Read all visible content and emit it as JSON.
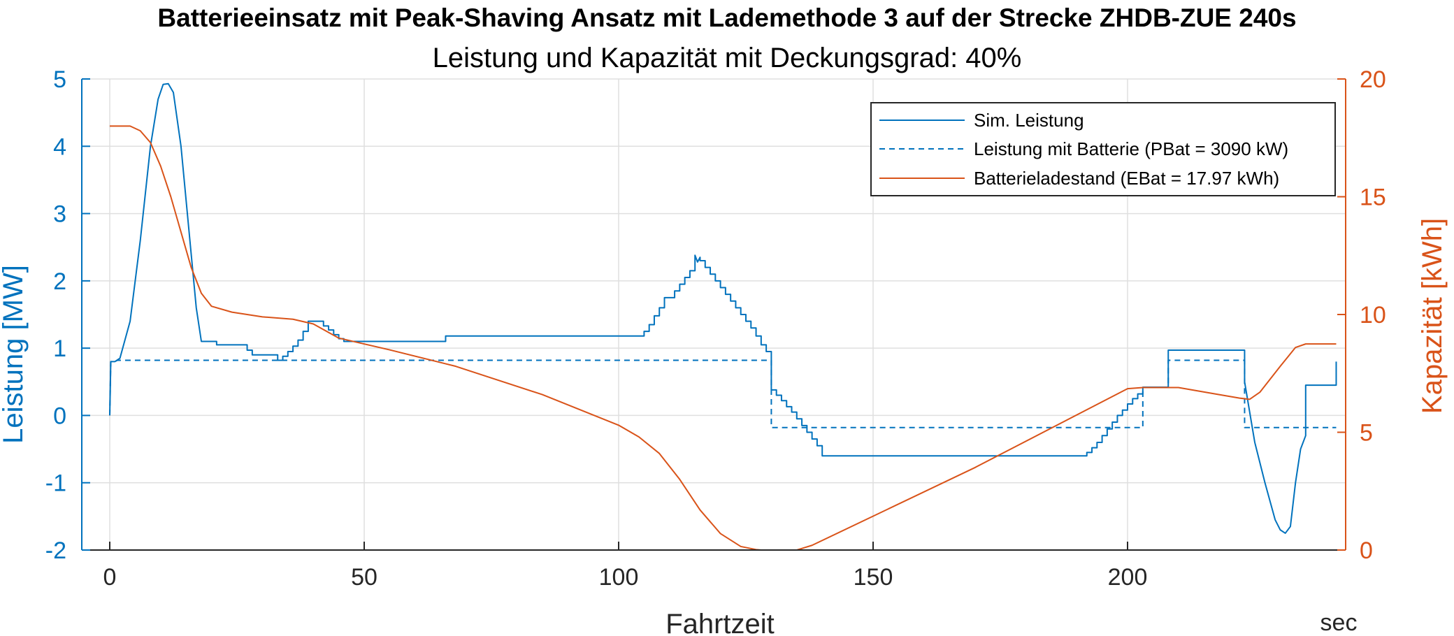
{
  "chart_data": {
    "type": "line",
    "title": "Batterieeinsatz mit Peak-Shaving Ansatz mit Lademethode 3 auf der Strecke ZHDB-ZUE 240s",
    "subtitle": "Leistung und Kapazität mit Deckungsgrad: 40%",
    "xlabel": "Fahrtzeit",
    "xunit": "sec",
    "ylabel_left": "Leistung [MW]",
    "ylabel_right": "Kapazität [kWh]",
    "xlim": [
      -3,
      243
    ],
    "ylim_left": [
      -2,
      5
    ],
    "ylim_right": [
      0,
      20
    ],
    "xticks": [
      0,
      50,
      100,
      150,
      200
    ],
    "yticks_left": [
      -2,
      -1,
      0,
      1,
      2,
      3,
      4,
      5
    ],
    "yticks_right": [
      0,
      5,
      10,
      15,
      20
    ],
    "grid": true,
    "legend_position": "top-right",
    "colors": {
      "blue": "#0072BD",
      "orange": "#D95319"
    },
    "series": [
      {
        "name": "Sim. Leistung",
        "axis": "left",
        "style": "solid",
        "color": "#0072BD",
        "points": [
          [
            0,
            0
          ],
          [
            0.2,
            0.8
          ],
          [
            1,
            0.8
          ],
          [
            2,
            0.85
          ],
          [
            4,
            1.4
          ],
          [
            6,
            2.6
          ],
          [
            8,
            4.0
          ],
          [
            9.5,
            4.7
          ],
          [
            10.5,
            4.92
          ],
          [
            11.5,
            4.93
          ],
          [
            12.5,
            4.8
          ],
          [
            14,
            4.0
          ],
          [
            15.5,
            2.8
          ],
          [
            17,
            1.6
          ],
          [
            18,
            1.1
          ],
          [
            21,
            1.1
          ],
          [
            21,
            1.05
          ],
          [
            27,
            1.05
          ],
          [
            27,
            0.97
          ],
          [
            28,
            0.97
          ],
          [
            28,
            0.9
          ],
          [
            33,
            0.9
          ],
          [
            33,
            0.82
          ],
          [
            34,
            0.82
          ],
          [
            34,
            0.88
          ],
          [
            35,
            0.88
          ],
          [
            35,
            0.95
          ],
          [
            36,
            0.95
          ],
          [
            36,
            1.03
          ],
          [
            37,
            1.03
          ],
          [
            37,
            1.12
          ],
          [
            38,
            1.12
          ],
          [
            38,
            1.25
          ],
          [
            39,
            1.25
          ],
          [
            39,
            1.4
          ],
          [
            42,
            1.4
          ],
          [
            42,
            1.33
          ],
          [
            43,
            1.33
          ],
          [
            43,
            1.27
          ],
          [
            44,
            1.27
          ],
          [
            44,
            1.2
          ],
          [
            45,
            1.2
          ],
          [
            45,
            1.14
          ],
          [
            46,
            1.14
          ],
          [
            46,
            1.1
          ],
          [
            66,
            1.1
          ],
          [
            66,
            1.18
          ],
          [
            105,
            1.18
          ],
          [
            105,
            1.25
          ],
          [
            106,
            1.25
          ],
          [
            106,
            1.35
          ],
          [
            107,
            1.35
          ],
          [
            107,
            1.48
          ],
          [
            108,
            1.48
          ],
          [
            108,
            1.6
          ],
          [
            109,
            1.6
          ],
          [
            109,
            1.75
          ],
          [
            111,
            1.75
          ],
          [
            111,
            1.85
          ],
          [
            112,
            1.85
          ],
          [
            112,
            1.95
          ],
          [
            113,
            1.95
          ],
          [
            113,
            2.05
          ],
          [
            114,
            2.05
          ],
          [
            114,
            2.15
          ],
          [
            115,
            2.15
          ],
          [
            115,
            2.38
          ],
          [
            115.5,
            2.28
          ],
          [
            116,
            2.35
          ],
          [
            116,
            2.3
          ],
          [
            117,
            2.3
          ],
          [
            117,
            2.2
          ],
          [
            118,
            2.2
          ],
          [
            118,
            2.1
          ],
          [
            119,
            2.1
          ],
          [
            119,
            2.0
          ],
          [
            120,
            2.0
          ],
          [
            120,
            1.9
          ],
          [
            121,
            1.9
          ],
          [
            121,
            1.8
          ],
          [
            122,
            1.8
          ],
          [
            122,
            1.7
          ],
          [
            123,
            1.7
          ],
          [
            123,
            1.6
          ],
          [
            124,
            1.6
          ],
          [
            124,
            1.5
          ],
          [
            125,
            1.5
          ],
          [
            125,
            1.4
          ],
          [
            126,
            1.4
          ],
          [
            126,
            1.3
          ],
          [
            127,
            1.3
          ],
          [
            127,
            1.18
          ],
          [
            128,
            1.18
          ],
          [
            128,
            1.05
          ],
          [
            129,
            1.05
          ],
          [
            129,
            0.95
          ],
          [
            130,
            0.95
          ],
          [
            130,
            0.38
          ],
          [
            131,
            0.38
          ],
          [
            131,
            0.3
          ],
          [
            132,
            0.3
          ],
          [
            132,
            0.22
          ],
          [
            133,
            0.22
          ],
          [
            133,
            0.13
          ],
          [
            134,
            0.13
          ],
          [
            134,
            0.05
          ],
          [
            135,
            0.05
          ],
          [
            135,
            -0.05
          ],
          [
            136,
            -0.05
          ],
          [
            136,
            -0.15
          ],
          [
            137,
            -0.15
          ],
          [
            137,
            -0.25
          ],
          [
            138,
            -0.25
          ],
          [
            138,
            -0.35
          ],
          [
            139,
            -0.35
          ],
          [
            139,
            -0.45
          ],
          [
            140,
            -0.45
          ],
          [
            140,
            -0.6
          ],
          [
            192,
            -0.6
          ],
          [
            192,
            -0.55
          ],
          [
            193,
            -0.55
          ],
          [
            193,
            -0.48
          ],
          [
            194,
            -0.48
          ],
          [
            194,
            -0.4
          ],
          [
            195,
            -0.4
          ],
          [
            195,
            -0.3
          ],
          [
            196,
            -0.3
          ],
          [
            196,
            -0.2
          ],
          [
            197,
            -0.2
          ],
          [
            197,
            -0.1
          ],
          [
            198,
            -0.1
          ],
          [
            198,
            0.0
          ],
          [
            199,
            0.0
          ],
          [
            199,
            0.08
          ],
          [
            200,
            0.08
          ],
          [
            200,
            0.17
          ],
          [
            201,
            0.17
          ],
          [
            201,
            0.25
          ],
          [
            202,
            0.25
          ],
          [
            202,
            0.32
          ],
          [
            203,
            0.32
          ],
          [
            203,
            0.42
          ],
          [
            208,
            0.42
          ],
          [
            208,
            0.97
          ],
          [
            223,
            0.97
          ],
          [
            223,
            0.5
          ],
          [
            225,
            -0.4
          ],
          [
            227,
            -1.0
          ],
          [
            229,
            -1.55
          ],
          [
            230,
            -1.7
          ],
          [
            231,
            -1.75
          ],
          [
            232,
            -1.65
          ],
          [
            233,
            -1.0
          ],
          [
            234,
            -0.5
          ],
          [
            235,
            -0.3
          ],
          [
            235,
            0.45
          ],
          [
            241,
            0.45
          ],
          [
            241,
            0.8
          ]
        ]
      },
      {
        "name": "Leistung mit Batterie (PBat = 3090 kW)",
        "axis": "left",
        "style": "dashed",
        "color": "#0072BD",
        "points": [
          [
            0,
            0
          ],
          [
            0.2,
            0.8
          ],
          [
            1,
            0.8
          ],
          [
            1.5,
            0.82
          ],
          [
            130,
            0.82
          ],
          [
            130,
            -0.18
          ],
          [
            203,
            -0.18
          ],
          [
            203,
            0.42
          ],
          [
            208,
            0.42
          ],
          [
            208,
            0.82
          ],
          [
            223,
            0.82
          ],
          [
            223,
            -0.18
          ],
          [
            241,
            -0.18
          ]
        ]
      },
      {
        "name": "Batterieladestand (EBat = 17.97 kWh)",
        "axis": "right",
        "style": "solid",
        "color": "#D95319",
        "points": [
          [
            0,
            18.0
          ],
          [
            4,
            18.0
          ],
          [
            6,
            17.8
          ],
          [
            8,
            17.3
          ],
          [
            10,
            16.3
          ],
          [
            12,
            15.0
          ],
          [
            14,
            13.5
          ],
          [
            16,
            12.0
          ],
          [
            18,
            10.9
          ],
          [
            20,
            10.35
          ],
          [
            24,
            10.1
          ],
          [
            30,
            9.9
          ],
          [
            36,
            9.8
          ],
          [
            40,
            9.6
          ],
          [
            45,
            9.0
          ],
          [
            55,
            8.5
          ],
          [
            68,
            7.8
          ],
          [
            85,
            6.6
          ],
          [
            100,
            5.3
          ],
          [
            104,
            4.8
          ],
          [
            108,
            4.1
          ],
          [
            112,
            3.0
          ],
          [
            116,
            1.7
          ],
          [
            120,
            0.7
          ],
          [
            124,
            0.15
          ],
          [
            127,
            0.02
          ],
          [
            128,
            0.0
          ],
          [
            135,
            0.0
          ],
          [
            138,
            0.2
          ],
          [
            170,
            3.5
          ],
          [
            200,
            6.85
          ],
          [
            203,
            6.9
          ],
          [
            210,
            6.9
          ],
          [
            218,
            6.6
          ],
          [
            222,
            6.45
          ],
          [
            224,
            6.4
          ],
          [
            226,
            6.7
          ],
          [
            230,
            7.8
          ],
          [
            233,
            8.6
          ],
          [
            235,
            8.75
          ],
          [
            241,
            8.75
          ]
        ]
      }
    ]
  }
}
